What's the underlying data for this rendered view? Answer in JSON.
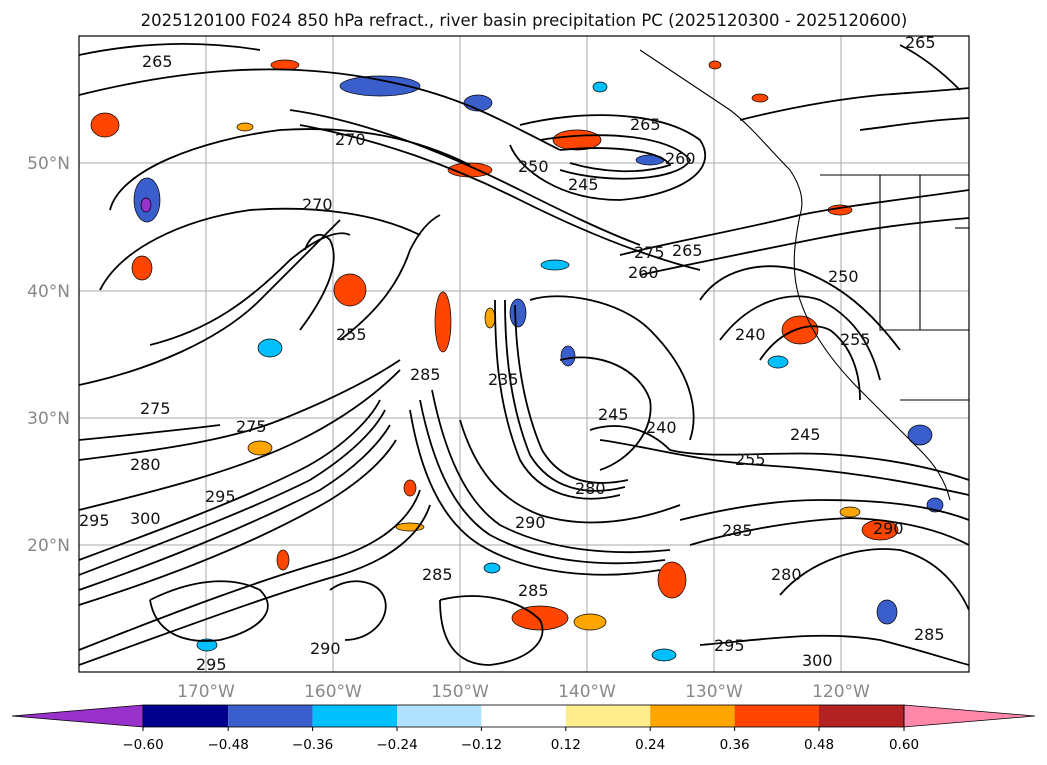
{
  "title": "2025120100 F024 850 hPa refract., river basin precipitation PC (2025120300 - 2025120600)",
  "lat_labels": [
    "50°N",
    "40°N",
    "30°N",
    "20°N"
  ],
  "lon_labels": [
    "170°W",
    "160°W",
    "150°W",
    "140°W",
    "130°W",
    "120°W"
  ],
  "contour_labels": [
    "265",
    "265",
    "270",
    "265",
    "250",
    "260",
    "245",
    "270",
    "275",
    "260",
    "265",
    "250",
    "255",
    "240",
    "275",
    "285",
    "255",
    "235",
    "275",
    "280",
    "245",
    "240",
    "245",
    "255",
    "280",
    "295",
    "300",
    "290",
    "285",
    "285",
    "290",
    "285",
    "280",
    "295",
    "300",
    "290",
    "295",
    "295",
    "285"
  ],
  "colorbar": {
    "ticks": [
      "−0.60",
      "−0.48",
      "−0.36",
      "−0.24",
      "−0.12",
      "0.12",
      "0.24",
      "0.36",
      "0.48",
      "0.60"
    ],
    "colors": [
      "#9932cc",
      "#00008b",
      "#3a5fcd",
      "#00bfff",
      "#b0e2ff",
      "#ffffff",
      "#ffec8b",
      "#ffa500",
      "#ff4500",
      "#b22222",
      "#ff88aa"
    ]
  }
}
